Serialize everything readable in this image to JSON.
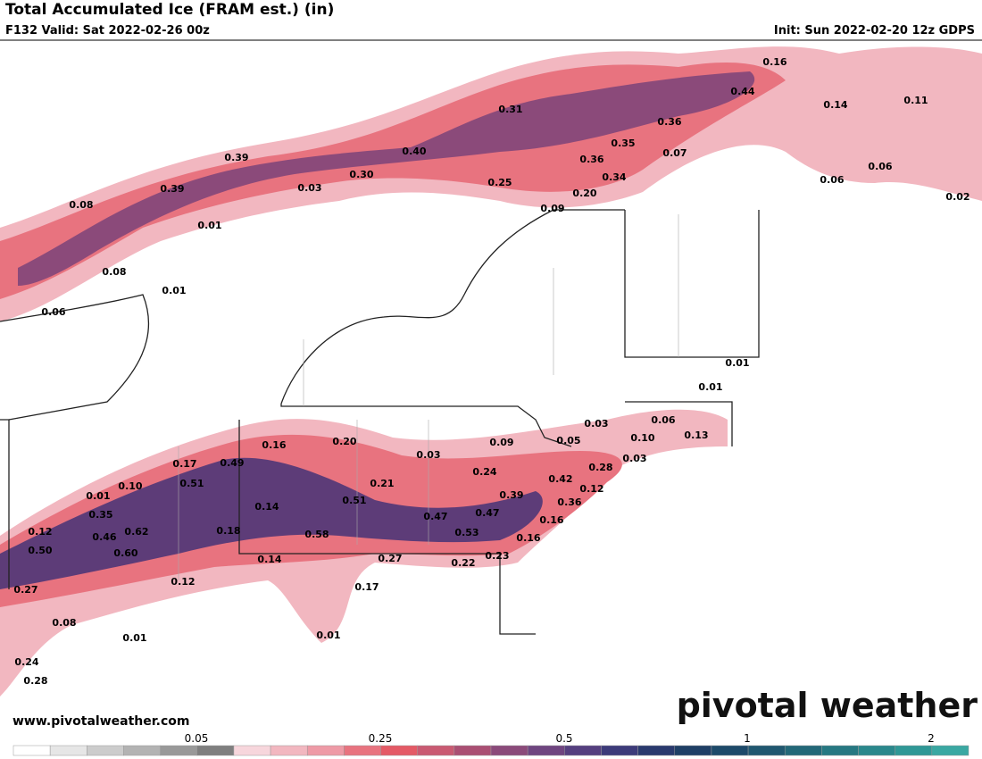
{
  "header": {
    "title": "Total Accumulated Ice (FRAM est.) (in)",
    "valid": "F132 Valid: Sat 2022-02-26 00z",
    "init": "Init: Sun 2022-02-20 12z GDPS"
  },
  "map": {
    "labels": [
      "0.16",
      "0.44",
      "0.14",
      "0.11",
      "0.31",
      "0.36",
      "0.35",
      "0.07",
      "0.36",
      "0.40",
      "0.39",
      "0.30",
      "0.34",
      "0.25",
      "0.06",
      "0.06",
      "0.39",
      "0.03",
      "0.20",
      "0.02",
      "0.08",
      "0.09",
      "0.01",
      "0.08",
      "0.01",
      "0.06",
      "0.01",
      "0.01",
      "0.06",
      "0.03",
      "0.10",
      "0.13",
      "0.16",
      "0.20",
      "0.09",
      "0.05",
      "0.03",
      "0.03",
      "0.17",
      "0.49",
      "0.28",
      "0.24",
      "0.42",
      "0.21",
      "0.10",
      "0.51",
      "0.12",
      "0.01",
      "0.39",
      "0.51",
      "0.36",
      "0.14",
      "0.35",
      "0.47",
      "0.47",
      "0.16",
      "0.12",
      "0.62",
      "0.18",
      "0.58",
      "0.46",
      "0.53",
      "0.16",
      "0.50",
      "0.60",
      "0.23",
      "0.14",
      "0.27",
      "0.22",
      "0.12",
      "0.17",
      "0.27",
      "0.08",
      "0.01",
      "0.01",
      "0.24",
      "0.28"
    ]
  },
  "footer": {
    "url": "www.pivotalweather.com",
    "brand": "pivotal weather"
  },
  "colorbar": {
    "labels": [
      "0.05",
      "0.25",
      "0.5",
      "1",
      "2"
    ]
  }
}
